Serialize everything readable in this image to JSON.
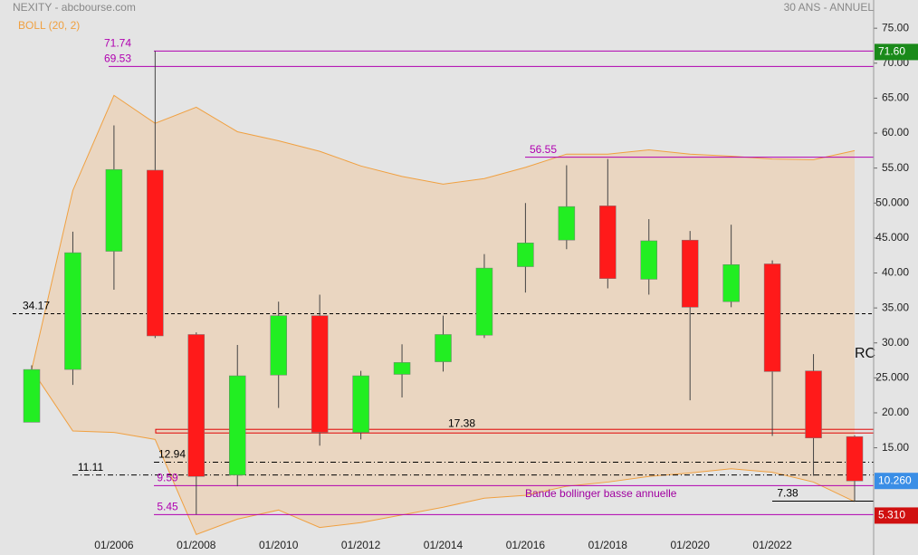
{
  "chart_data": {
    "type": "candlestick",
    "title": "NEXITY - abcbourse.com",
    "subtitle": "30 ANS - ANNUEL",
    "indicator_label": "BOLL (20, 2)",
    "categories": [
      null,
      null,
      "01/2006",
      null,
      "01/2008",
      null,
      "01/2010",
      null,
      "01/2012",
      null,
      "01/2014",
      null,
      "01/2016",
      null,
      "01/2018",
      null,
      "01/2020",
      null,
      "01/2022",
      null,
      null
    ],
    "open": [
      18.65,
      26.2,
      43.1,
      54.7,
      31.2,
      11.1,
      25.4,
      33.9,
      17.2,
      25.5,
      27.3,
      31.1,
      40.9,
      44.7,
      49.6,
      39.1,
      44.7,
      35.9,
      41.3,
      26.0,
      16.6
    ],
    "high": [
      26.8,
      45.9,
      61.1,
      71.74,
      31.5,
      29.7,
      35.9,
      36.9,
      26.0,
      29.8,
      33.9,
      42.7,
      50.0,
      55.4,
      56.3,
      47.7,
      46.0,
      46.9,
      41.8,
      28.4,
      16.8
    ],
    "low": [
      18.65,
      24.0,
      37.6,
      30.7,
      5.45,
      9.5,
      20.7,
      15.3,
      16.2,
      22.2,
      25.9,
      30.7,
      37.2,
      43.4,
      37.8,
      36.9,
      21.8,
      35.1,
      16.7,
      11.0,
      7.38
    ],
    "close": [
      26.2,
      42.9,
      54.8,
      31.0,
      10.9,
      25.3,
      33.9,
      17.2,
      25.3,
      27.2,
      31.2,
      40.7,
      44.3,
      49.5,
      39.2,
      44.6,
      35.1,
      41.2,
      25.9,
      16.4,
      10.26
    ],
    "up_color": "#22ee22",
    "down_color": "#ff1a1a",
    "bollinger": {
      "color": "#f0a040",
      "upper": [
        26.2,
        51.8,
        65.4,
        61.4,
        63.7,
        60.2,
        58.9,
        57.4,
        55.3,
        53.8,
        52.7,
        53.5,
        55.1,
        57.0,
        57.0,
        57.6,
        57.0,
        56.7,
        56.3,
        56.2,
        57.5
      ],
      "lower": [
        26.2,
        17.4,
        17.2,
        16.2,
        2.6,
        4.8,
        6.1,
        3.6,
        4.3,
        5.4,
        6.5,
        7.8,
        8.2,
        9.5,
        10.1,
        10.9,
        11.4,
        12.0,
        11.5,
        10.1,
        7.3
      ]
    },
    "levels": [
      {
        "value": 71.74,
        "color": "#b000b0",
        "style": "solid"
      },
      {
        "value": 69.53,
        "color": "#b000b0",
        "style": "solid"
      },
      {
        "value": 56.55,
        "color": "#b000b0",
        "style": "solid"
      },
      {
        "value": 34.17,
        "color": "#000000",
        "style": "dashed"
      },
      {
        "value": 17.38,
        "color": "#e00000",
        "style": "double"
      },
      {
        "value": 12.94,
        "color": "#000000",
        "style": "dashdot"
      },
      {
        "value": 11.11,
        "color": "#000000",
        "style": "dashdot"
      },
      {
        "value": 9.59,
        "color": "#b000b0",
        "style": "solid"
      },
      {
        "value": 7.38,
        "color": "#000000",
        "style": "solid"
      },
      {
        "value": 5.45,
        "color": "#b000b0",
        "style": "solid"
      }
    ],
    "annotations": [
      "Bande bollinger basse annuelle",
      "RC"
    ],
    "price_tags": [
      {
        "value": 71.6,
        "label": "71.60",
        "color": "#1a8a1a"
      },
      {
        "value": 10.26,
        "label": "10.260",
        "color": "#3a8ee6"
      },
      {
        "value": 5.31,
        "label": "5.310",
        "color": "#d01010"
      }
    ],
    "ylim": [
      2,
      78
    ],
    "yticks": [
      {
        "value": 15,
        "label": "15.00"
      },
      {
        "value": 20,
        "label": "20.00"
      },
      {
        "value": 25,
        "label": "25.000"
      },
      {
        "value": 30,
        "label": "30.00"
      },
      {
        "value": 35,
        "label": "35.00"
      },
      {
        "value": 40,
        "label": "40.00"
      },
      {
        "value": 45,
        "label": "45.000"
      },
      {
        "value": 50,
        "label": "50.000"
      },
      {
        "value": 55,
        "label": "55.00"
      },
      {
        "value": 60,
        "label": "60.00"
      },
      {
        "value": 65,
        "label": "65.00"
      },
      {
        "value": 70,
        "label": "70.00"
      },
      {
        "value": 75,
        "label": "75.00"
      }
    ]
  }
}
